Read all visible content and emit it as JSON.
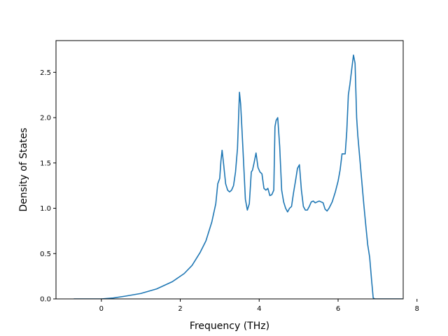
{
  "chart_data": {
    "type": "line",
    "title": "",
    "xlabel": "Frequency (THz)",
    "ylabel": "Density of States",
    "xlim": [
      -1.15,
      7.65
    ],
    "ylim": [
      0.0,
      2.85
    ],
    "xticks": [
      0,
      2,
      4,
      6,
      8
    ],
    "xtick_labels": [
      "0",
      "2",
      "4",
      "6",
      "8"
    ],
    "yticks": [
      0.0,
      0.5,
      1.0,
      1.5,
      2.0,
      2.5
    ],
    "ytick_labels": [
      "0.0",
      "0.5",
      "1.0",
      "1.5",
      "2.0",
      "2.5"
    ],
    "grid": false,
    "legend": "none",
    "series": [
      {
        "color": "#1f77b4",
        "x": [
          -0.7,
          0.0,
          0.3,
          0.6,
          1.0,
          1.4,
          1.8,
          2.1,
          2.3,
          2.5,
          2.65,
          2.8,
          2.9,
          2.95,
          3.0,
          3.03,
          3.06,
          3.1,
          3.15,
          3.2,
          3.25,
          3.3,
          3.35,
          3.4,
          3.45,
          3.5,
          3.53,
          3.56,
          3.6,
          3.65,
          3.7,
          3.75,
          3.8,
          3.83,
          3.87,
          3.92,
          3.97,
          4.02,
          4.07,
          4.12,
          4.17,
          4.22,
          4.27,
          4.32,
          4.37,
          4.4,
          4.43,
          4.47,
          4.52,
          4.57,
          4.62,
          4.67,
          4.72,
          4.77,
          4.82,
          4.87,
          4.92,
          4.97,
          5.02,
          5.07,
          5.12,
          5.17,
          5.22,
          5.27,
          5.32,
          5.37,
          5.42,
          5.47,
          5.52,
          5.57,
          5.62,
          5.67,
          5.72,
          5.77,
          5.85,
          5.93,
          6.0,
          6.05,
          6.1,
          6.14,
          6.18,
          6.22,
          6.26,
          6.3,
          6.35,
          6.39,
          6.43,
          6.47,
          6.5,
          6.55,
          6.6,
          6.65,
          6.7,
          6.75,
          6.8,
          6.85,
          6.89,
          6.93,
          6.96,
          7.0,
          7.3,
          7.63
        ],
        "y": [
          0.0,
          0.0,
          0.01,
          0.03,
          0.06,
          0.11,
          0.19,
          0.28,
          0.37,
          0.51,
          0.64,
          0.85,
          1.05,
          1.27,
          1.33,
          1.52,
          1.64,
          1.48,
          1.27,
          1.2,
          1.18,
          1.2,
          1.25,
          1.4,
          1.66,
          2.28,
          2.15,
          1.9,
          1.55,
          1.1,
          0.98,
          1.05,
          1.4,
          1.42,
          1.5,
          1.61,
          1.45,
          1.4,
          1.38,
          1.22,
          1.2,
          1.22,
          1.14,
          1.15,
          1.2,
          1.9,
          1.97,
          2.0,
          1.68,
          1.2,
          1.07,
          1.0,
          0.96,
          1.0,
          1.02,
          1.17,
          1.3,
          1.44,
          1.48,
          1.2,
          1.02,
          0.98,
          0.98,
          1.02,
          1.07,
          1.08,
          1.06,
          1.07,
          1.08,
          1.07,
          1.06,
          0.99,
          0.97,
          1.0,
          1.07,
          1.18,
          1.3,
          1.42,
          1.6,
          1.6,
          1.6,
          1.85,
          2.25,
          2.37,
          2.55,
          2.69,
          2.6,
          2.0,
          1.8,
          1.55,
          1.3,
          1.05,
          0.82,
          0.6,
          0.46,
          0.2,
          0.01,
          0.0,
          0.0,
          0.0,
          0.0,
          0.0
        ]
      }
    ]
  }
}
